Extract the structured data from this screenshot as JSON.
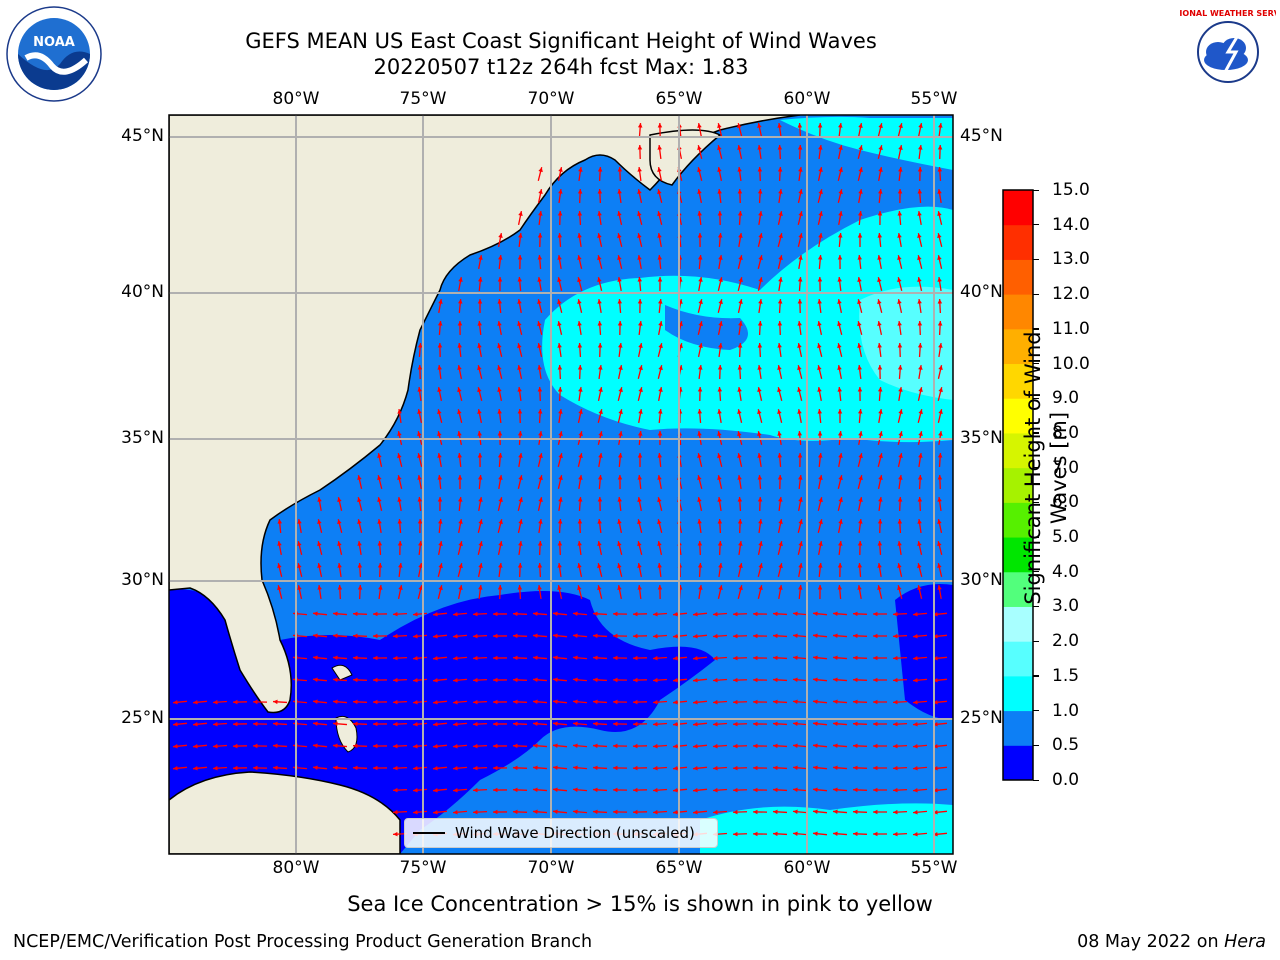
{
  "header": {
    "title_line1": "GEFS MEAN US East Coast Significant Height of Wind Waves",
    "title_line2": "20220507 t12z 264h fcst   Max: 1.83",
    "left_logo_text": "NOAA",
    "right_logo_text": "NATIONAL WEATHER SERVICE"
  },
  "map": {
    "lon_labels": [
      "80°W",
      "75°W",
      "70°W",
      "65°W",
      "60°W",
      "55°W"
    ],
    "lat_labels": [
      "45°N",
      "40°N",
      "35°N",
      "30°N",
      "25°N"
    ],
    "legend_label": "Wind Wave Direction (unscaled)",
    "colors": {
      "land": "#efeddc",
      "band_0_0.5": "#0000ff",
      "band_0.5_1.0": "#0d7ff5",
      "band_1.0_1.5": "#00ffff",
      "band_1.5_2.0": "#57ffff",
      "arrow": "#ff0000",
      "grid": "#b0b0b0"
    }
  },
  "colorbar": {
    "label": "Significant Height of Wind Waves [m]",
    "ticks": [
      "15.0",
      "14.0",
      "13.0",
      "12.0",
      "11.0",
      "10.0",
      "9.0",
      "8.0",
      "7.0",
      "6.0",
      "5.0",
      "4.0",
      "3.0",
      "2.0",
      "1.5",
      "1.0",
      "0.5",
      "0.0"
    ],
    "colors": [
      "#0000ff",
      "#0d7ff5",
      "#00ffff",
      "#57ffff",
      "#a8ffff",
      "#52ff7c",
      "#00e600",
      "#56f000",
      "#a6f200",
      "#d6f500",
      "#ffff00",
      "#ffd700",
      "#ffaf00",
      "#ff8700",
      "#ff5f00",
      "#ff2f00",
      "#ff0000"
    ]
  },
  "footer": {
    "note": "Sea Ice Concentration > 15% is shown in pink to yellow",
    "credit": "NCEP/EMC/Verification Post Processing Product Generation Branch",
    "date": "08 May 2022 on",
    "machine": "Hera"
  }
}
